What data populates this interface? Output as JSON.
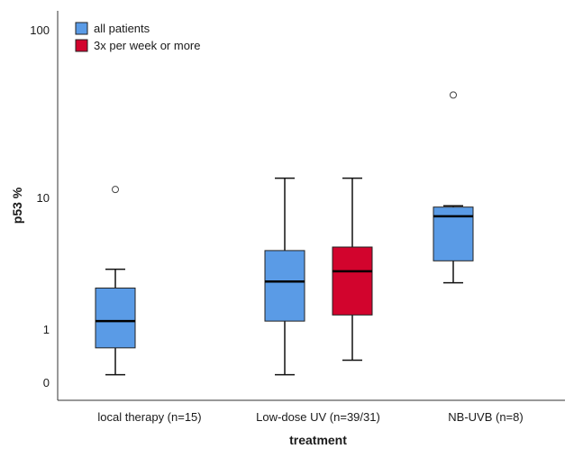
{
  "chart_data": {
    "type": "box",
    "xlabel": "treatment",
    "ylabel": "p53 %",
    "y_scale": "log",
    "y_ticks": [
      "100",
      "10",
      "1",
      "0"
    ],
    "categories": [
      "local therapy (n=15)",
      "Low-dose UV (n=39/31)",
      "NB-UVB (n=8)"
    ],
    "series": [
      {
        "name": "all patients",
        "color": "#5a9be6",
        "boxes": [
          {
            "category": "local therapy (n=15)",
            "min": 0.45,
            "q1": 0.72,
            "median": 1.15,
            "q3": 2.05,
            "max": 2.85,
            "outliers": [
              11.5
            ]
          },
          {
            "category": "Low-dose UV (n=39/31)",
            "min": 0.45,
            "q1": 1.15,
            "median": 2.3,
            "q3": 3.95,
            "max": 14.0,
            "outliers": []
          },
          {
            "category": "NB-UVB (n=8)",
            "min": 2.25,
            "q1": 3.3,
            "median": 7.2,
            "q3": 8.45,
            "max": 8.65,
            "outliers": [
              60
            ]
          }
        ]
      },
      {
        "name": "3x per week or more",
        "color": "#d2042d",
        "boxes": [
          {
            "category": "Low-dose UV (n=39/31)",
            "min": 0.58,
            "q1": 1.28,
            "median": 2.75,
            "q3": 4.2,
            "max": 14.0,
            "outliers": []
          }
        ]
      }
    ],
    "legend": {
      "position": "top-left"
    },
    "grid": false
  }
}
